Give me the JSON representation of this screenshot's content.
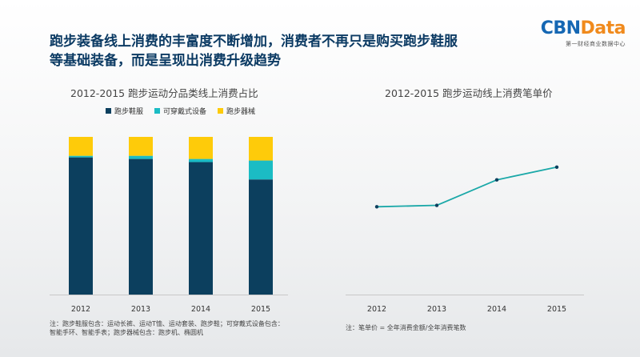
{
  "headline": {
    "line1": "跑步装备线上消费的丰富度不断增加，消费者不再只是购买跑步鞋服",
    "line2": "等基础装备，而是呈现出消费升级趋势"
  },
  "logo": {
    "cbn": "CBN",
    "data": "Data",
    "tagline": "第一财经商业数据中心"
  },
  "colors": {
    "shoes": "#0c3f5e",
    "wearable": "#1bbcc4",
    "equipment": "#fecb0a",
    "line": "#1aa8a8"
  },
  "chart_data": [
    {
      "type": "bar",
      "stacked": true,
      "title": "2012-2015 跑步运动分品类线上消费占比",
      "categories": [
        "2012",
        "2013",
        "2014",
        "2015"
      ],
      "series": [
        {
          "name": "跑步鞋服",
          "values": [
            87,
            86,
            84,
            73
          ]
        },
        {
          "name": "可穿戴式设备",
          "values": [
            1,
            2,
            2,
            12
          ]
        },
        {
          "name": "跑步器械",
          "values": [
            12,
            12,
            14,
            15
          ]
        }
      ],
      "ylim": [
        0,
        100
      ],
      "legend": "top",
      "grid": false,
      "note": [
        "注：跑步鞋服包含：运动长裤、运动T恤、运动套装、跑步鞋；可穿戴式设备包含：",
        "智能手环、智能手表；跑步器械包含：跑步机、椭圆机"
      ]
    },
    {
      "type": "line",
      "title": "2012-2015 跑步运动线上消费笔单价",
      "categories": [
        "2012",
        "2013",
        "2014",
        "2015"
      ],
      "series": [
        {
          "values": [
            62,
            63,
            81,
            90
          ]
        }
      ],
      "ylim": [
        0,
        130
      ],
      "grid": false,
      "note": [
        "注：笔单价 = 全年消费金额/全年消费笔数"
      ]
    }
  ]
}
